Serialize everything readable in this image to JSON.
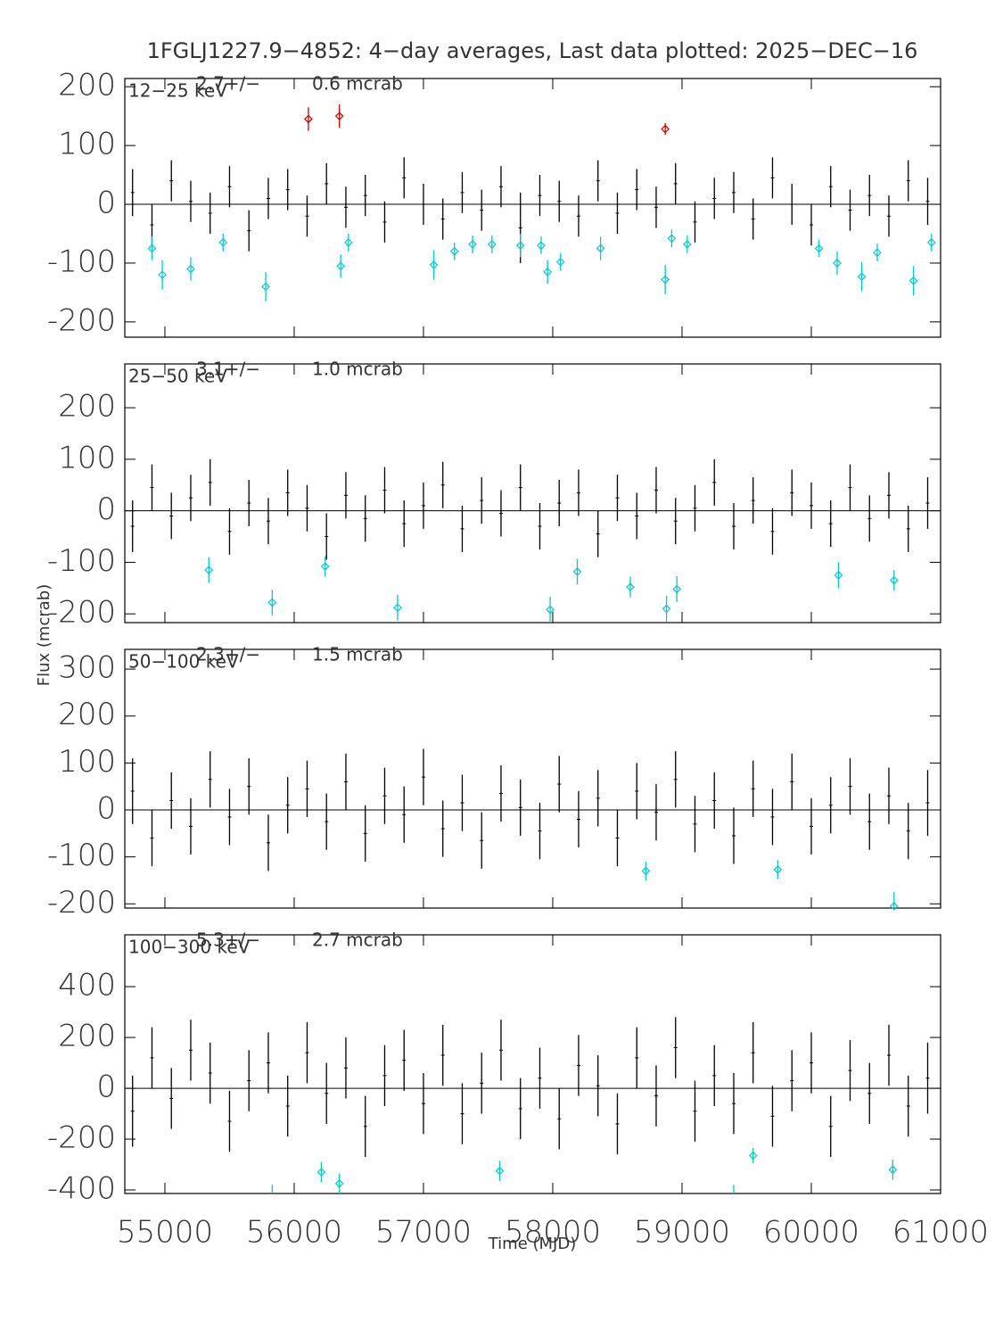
{
  "title": "1FGLJ1227.9−4852:  4−day averages,  Last data plotted: 2025−DEC−16",
  "ylabel": "Flux (mcrab)",
  "xlabel": "Time (MJD)",
  "chart_data": [
    {
      "type": "errorbar",
      "band": "12−25 keV",
      "mean": "2.7+/−",
      "mean_error": "0.6 mcrab",
      "xlim": [
        54690,
        61000
      ],
      "xticks": [
        55000,
        56000,
        57000,
        58000,
        59000,
        60000,
        61000
      ],
      "ylim": [
        -226,
        214
      ],
      "yticks": [
        -200,
        -100,
        0,
        100,
        200
      ],
      "series": [
        {
          "color": "#000000",
          "marker": "none",
          "x": [
            54750,
            54900,
            55050,
            55200,
            55350,
            55500,
            55650,
            55800,
            55950,
            56100,
            56250,
            56400,
            56550,
            56700,
            56850,
            57000,
            57150,
            57300,
            57450,
            57600,
            57750,
            57900,
            58050,
            58200,
            58350,
            58500,
            58650,
            58800,
            58950,
            59100,
            59250,
            59400,
            59550,
            59700,
            59850,
            60000,
            60150,
            60300,
            60450,
            60600,
            60750,
            60900
          ],
          "values": [
            20,
            -35,
            40,
            5,
            -15,
            30,
            -45,
            10,
            25,
            -20,
            35,
            -5,
            15,
            -30,
            45,
            0,
            -25,
            20,
            -10,
            30,
            -40,
            15,
            5,
            -20,
            40,
            -15,
            25,
            -5,
            35,
            -30,
            10,
            20,
            -25,
            45,
            0,
            -35,
            30,
            -10,
            15,
            -20,
            40,
            5
          ],
          "errors": [
            40,
            35,
            35,
            35,
            35,
            35,
            35,
            35,
            35,
            35,
            35,
            35,
            35,
            35,
            35,
            35,
            35,
            35,
            35,
            35,
            60,
            35,
            35,
            35,
            35,
            35,
            35,
            35,
            35,
            35,
            35,
            35,
            35,
            35,
            35,
            35,
            35,
            35,
            35,
            35,
            35,
            40
          ]
        },
        {
          "color": "#00cccc",
          "marker": "diamond",
          "x": [
            54900,
            54980,
            55200,
            55450,
            55780,
            56360,
            56420,
            57080,
            57240,
            57380,
            57530,
            57750,
            57910,
            57960,
            58060,
            58370,
            58870,
            58920,
            59040,
            60060,
            60200,
            60390,
            60510,
            60790,
            60930
          ],
          "values": [
            -75,
            -120,
            -110,
            -65,
            -140,
            -105,
            -65,
            -103,
            -80,
            -68,
            -68,
            -70,
            -70,
            -115,
            -98,
            -75,
            -128,
            -58,
            -68,
            -75,
            -100,
            -123,
            -82,
            -130,
            -65
          ],
          "errors": [
            20,
            25,
            20,
            15,
            25,
            20,
            15,
            25,
            15,
            15,
            15,
            20,
            15,
            20,
            15,
            20,
            25,
            15,
            15,
            15,
            20,
            25,
            15,
            25,
            15
          ]
        },
        {
          "color": "#cc0000",
          "marker": "diamond",
          "x": [
            56110,
            56350,
            58870
          ],
          "values": [
            145,
            150,
            128
          ],
          "errors": [
            20,
            20,
            10
          ]
        }
      ]
    },
    {
      "type": "errorbar",
      "band": "25−50 keV",
      "mean": "3.1+/−",
      "mean_error": "1.0 mcrab",
      "xlim": [
        54690,
        61000
      ],
      "xticks": [
        55000,
        56000,
        57000,
        58000,
        59000,
        60000,
        61000
      ],
      "ylim": [
        -217,
        285
      ],
      "yticks": [
        -200,
        -100,
        0,
        100,
        200
      ],
      "series": [
        {
          "color": "#000000",
          "marker": "none",
          "x": [
            54750,
            54900,
            55050,
            55200,
            55350,
            55500,
            55650,
            55800,
            55950,
            56100,
            56250,
            56400,
            56550,
            56700,
            56850,
            57000,
            57150,
            57300,
            57450,
            57600,
            57750,
            57900,
            58050,
            58200,
            58350,
            58500,
            58650,
            58800,
            58950,
            59100,
            59250,
            59400,
            59550,
            59700,
            59850,
            60000,
            60150,
            60300,
            60450,
            60600,
            60750,
            60900
          ],
          "values": [
            -30,
            45,
            -10,
            25,
            55,
            -40,
            15,
            -20,
            35,
            5,
            -50,
            30,
            -15,
            40,
            -25,
            10,
            50,
            -35,
            20,
            -5,
            45,
            -30,
            15,
            35,
            -45,
            25,
            -10,
            40,
            -20,
            5,
            55,
            -30,
            20,
            -40,
            35,
            10,
            -25,
            45,
            -15,
            30,
            -35,
            15
          ],
          "errors": [
            50,
            45,
            45,
            45,
            45,
            45,
            45,
            45,
            45,
            45,
            45,
            45,
            45,
            45,
            45,
            45,
            45,
            45,
            45,
            45,
            45,
            45,
            45,
            45,
            45,
            45,
            45,
            45,
            45,
            45,
            45,
            45,
            45,
            45,
            45,
            45,
            45,
            45,
            45,
            45,
            45,
            50
          ]
        },
        {
          "color": "#00cccc",
          "marker": "diamond",
          "x": [
            55340,
            55830,
            56240,
            56800,
            57980,
            58190,
            58600,
            58880,
            58960,
            60210,
            60640
          ],
          "values": [
            -115,
            -178,
            -108,
            -188,
            -192,
            -118,
            -148,
            -190,
            -152,
            -125,
            -135
          ],
          "errors": [
            25,
            25,
            20,
            25,
            25,
            25,
            20,
            25,
            25,
            25,
            20
          ]
        }
      ]
    },
    {
      "type": "errorbar",
      "band": "50−100 keV",
      "mean": "2.3+/−",
      "mean_error": "1.5 mcrab",
      "xlim": [
        54690,
        61000
      ],
      "xticks": [
        55000,
        56000,
        57000,
        58000,
        59000,
        60000,
        61000
      ],
      "ylim": [
        -209,
        342
      ],
      "yticks": [
        -200,
        -100,
        0,
        100,
        200,
        300
      ],
      "series": [
        {
          "color": "#000000",
          "marker": "none",
          "x": [
            54750,
            54900,
            55050,
            55200,
            55350,
            55500,
            55650,
            55800,
            55950,
            56100,
            56250,
            56400,
            56550,
            56700,
            56850,
            57000,
            57150,
            57300,
            57450,
            57600,
            57750,
            57900,
            58050,
            58200,
            58350,
            58500,
            58650,
            58800,
            58950,
            59100,
            59250,
            59400,
            59550,
            59700,
            59850,
            60000,
            60150,
            60300,
            60450,
            60600,
            60750,
            60900
          ],
          "values": [
            40,
            -60,
            20,
            -35,
            65,
            -15,
            50,
            -70,
            10,
            45,
            -25,
            60,
            -50,
            30,
            -10,
            70,
            -40,
            15,
            -65,
            35,
            5,
            -45,
            55,
            -20,
            25,
            -60,
            40,
            -5,
            65,
            -30,
            20,
            -55,
            45,
            -15,
            60,
            -35,
            10,
            50,
            -25,
            30,
            -45,
            15
          ],
          "errors": [
            70,
            60,
            60,
            60,
            60,
            60,
            60,
            60,
            60,
            60,
            60,
            60,
            60,
            60,
            60,
            60,
            60,
            60,
            60,
            60,
            60,
            60,
            60,
            60,
            60,
            60,
            60,
            60,
            60,
            60,
            60,
            60,
            60,
            60,
            60,
            60,
            60,
            60,
            60,
            60,
            60,
            70
          ]
        },
        {
          "color": "#00cccc",
          "marker": "diamond",
          "x": [
            58720,
            59740,
            60640
          ],
          "values": [
            -130,
            -127,
            -205
          ],
          "errors": [
            20,
            20,
            30
          ]
        }
      ]
    },
    {
      "type": "errorbar",
      "band": "100−300 keV",
      "mean": "5.3+/−",
      "mean_error": "2.7 mcrab",
      "xlim": [
        54690,
        61000
      ],
      "xticks": [
        55000,
        56000,
        57000,
        58000,
        59000,
        60000,
        61000
      ],
      "ylim": [
        -414,
        604
      ],
      "yticks": [
        -400,
        -200,
        0,
        200,
        400
      ],
      "series": [
        {
          "color": "#000000",
          "marker": "none",
          "x": [
            54750,
            54900,
            55050,
            55200,
            55350,
            55500,
            55650,
            55800,
            55950,
            56100,
            56250,
            56400,
            56550,
            56700,
            56850,
            57000,
            57150,
            57300,
            57450,
            57600,
            57750,
            57900,
            58050,
            58200,
            58350,
            58500,
            58650,
            58800,
            58950,
            59100,
            59250,
            59400,
            59550,
            59700,
            59850,
            60000,
            60150,
            60300,
            60450,
            60600,
            60750,
            60900
          ],
          "values": [
            -90,
            120,
            -40,
            150,
            60,
            -130,
            30,
            100,
            -70,
            140,
            -20,
            80,
            -150,
            50,
            110,
            -60,
            130,
            -100,
            20,
            150,
            -80,
            40,
            -120,
            90,
            10,
            -140,
            120,
            -30,
            160,
            -90,
            50,
            -60,
            140,
            -110,
            30,
            100,
            -150,
            70,
            -20,
            130,
            -70,
            40
          ],
          "errors": [
            140,
            120,
            120,
            120,
            120,
            120,
            120,
            120,
            120,
            120,
            120,
            120,
            120,
            120,
            120,
            120,
            120,
            120,
            120,
            120,
            120,
            120,
            120,
            120,
            120,
            120,
            120,
            120,
            120,
            120,
            120,
            120,
            120,
            120,
            120,
            120,
            120,
            120,
            120,
            120,
            120,
            140
          ]
        },
        {
          "color": "#00cccc",
          "marker": "diamond",
          "x": [
            55830,
            56210,
            56350,
            57590,
            59400,
            59550,
            60630
          ],
          "values": [
            -420,
            -330,
            -375,
            -325,
            -420,
            -265,
            -320
          ],
          "errors": [
            40,
            40,
            40,
            40,
            40,
            30,
            40
          ]
        }
      ]
    }
  ]
}
